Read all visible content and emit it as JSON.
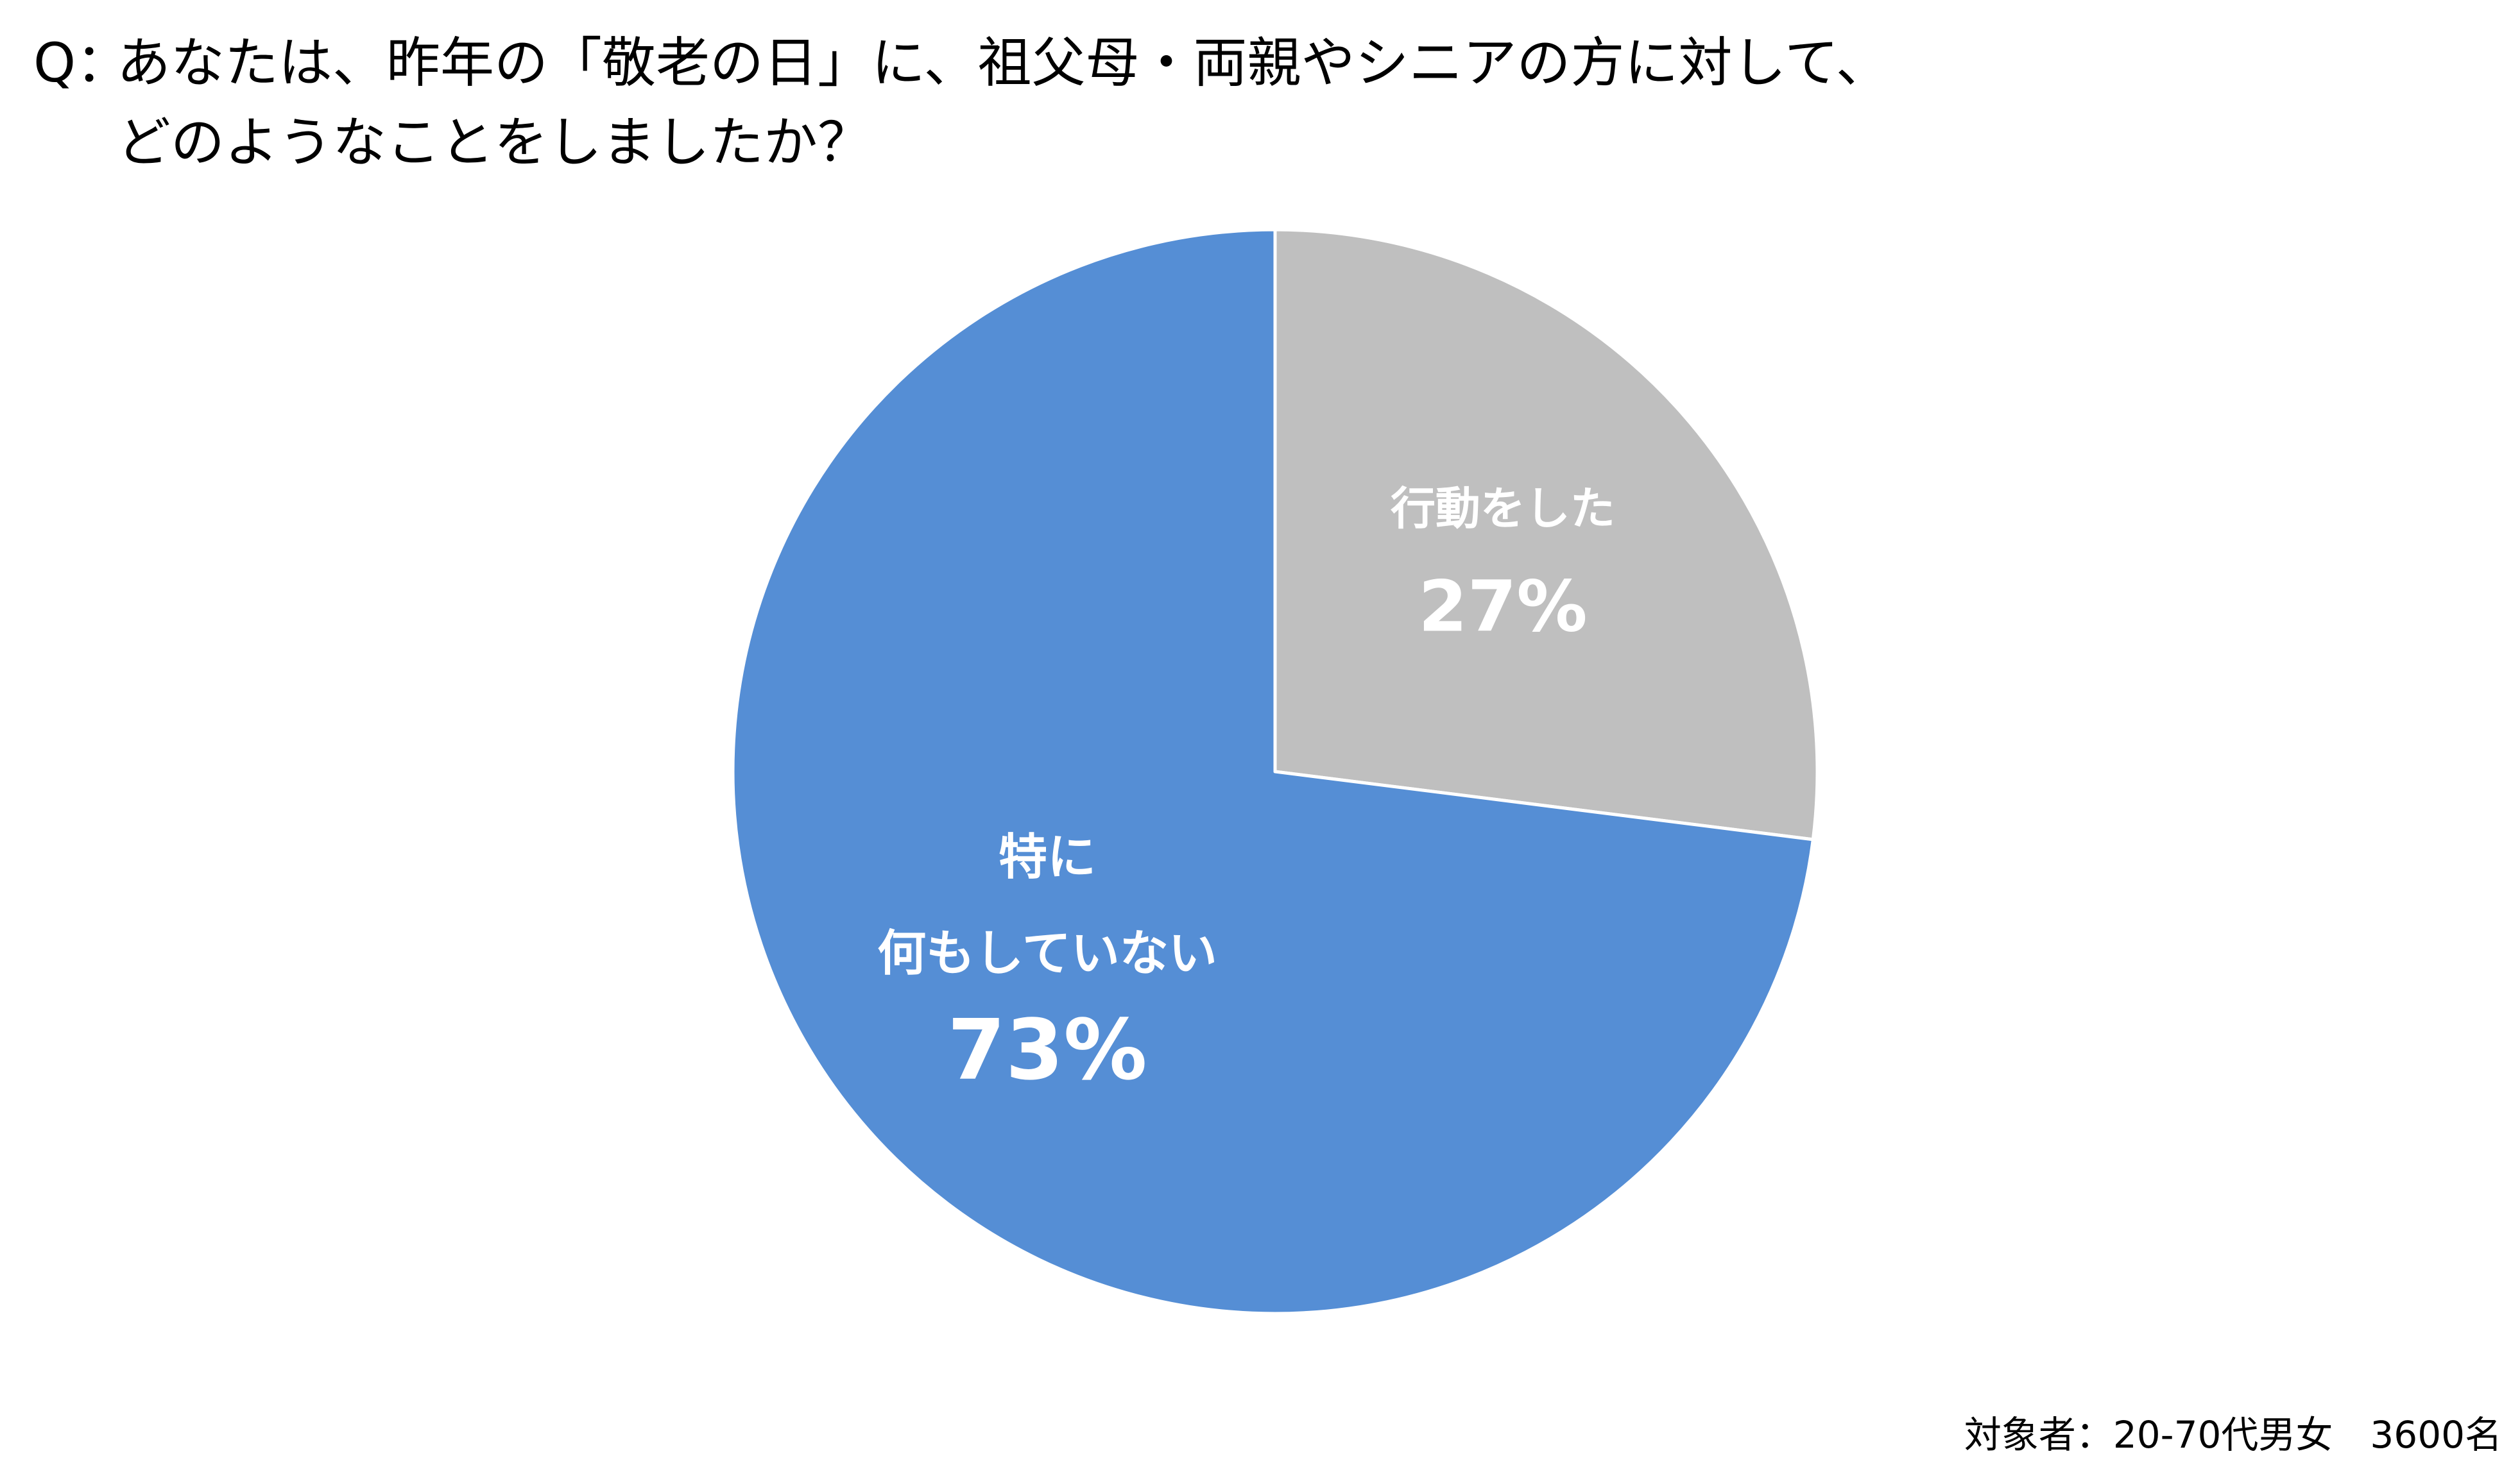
{
  "title": {
    "prefix": "Q：",
    "line1": "あなたは、昨年の「敬老の日」に、祖父母・両親やシニアの方に対して、",
    "line2": "どのようなことをしましたか？"
  },
  "footnote": "対象者：20-70代男女　3600名",
  "chart_data": {
    "type": "pie",
    "start": "12 o'clock",
    "direction": "clockwise",
    "legend": "none",
    "slices": [
      {
        "label_lines": [
          "行動をした"
        ],
        "value": 27,
        "percent_label": "27%",
        "color": "#bfbfbf"
      },
      {
        "label_lines": [
          "特に",
          "何もしていない"
        ],
        "value": 73,
        "percent_label": "73%",
        "color": "#558ed5"
      }
    ]
  }
}
